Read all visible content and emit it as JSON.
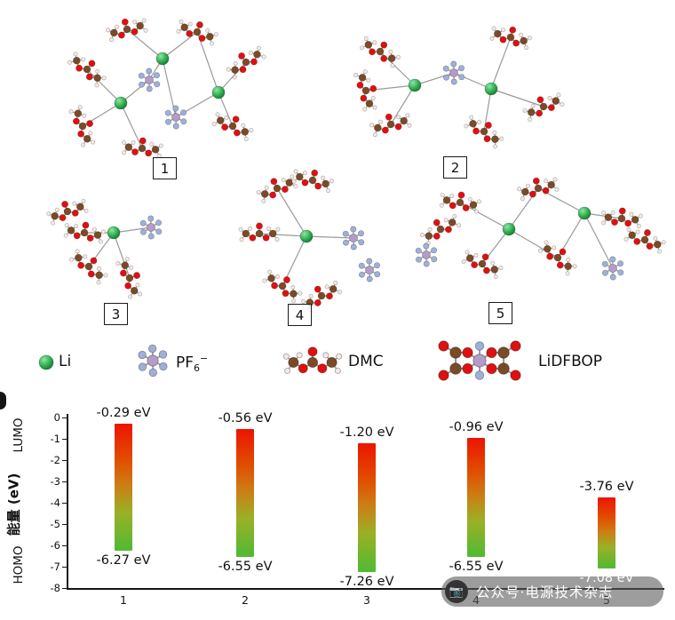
{
  "figure": {
    "structure_labels": [
      "1",
      "2",
      "3",
      "4",
      "5"
    ],
    "legend": {
      "li": "Li",
      "pf6_base": "PF",
      "pf6_sub": "6",
      "pf6_sup": "−",
      "dmc": "DMC",
      "lidfbop": "LiDFBOP"
    }
  },
  "chart_data": {
    "type": "bar",
    "categories": [
      "1",
      "2",
      "3",
      "4",
      "5"
    ],
    "series": [
      {
        "name": "LUMO",
        "values": [
          -0.29,
          -0.56,
          -1.2,
          -0.96,
          -3.76
        ]
      },
      {
        "name": "HOMO",
        "values": [
          -6.27,
          -6.55,
          -7.26,
          -6.55,
          -7.08
        ]
      }
    ],
    "bar_labels_top": [
      "-0.29 eV",
      "-0.56 eV",
      "-1.20 eV",
      "-0.96 eV",
      "-3.76 eV"
    ],
    "bar_labels_bottom": [
      "-6.27 eV",
      "-6.55 eV",
      "-7.26 eV",
      "-6.55 eV",
      "-7.08 eV"
    ],
    "ylabel_top": "LUMO",
    "ylabel_middle": "能量 (eV)",
    "ylabel_bottom": "HOMO",
    "ylim": [
      -8,
      0
    ],
    "yticks": [
      0,
      -1,
      -2,
      -3,
      -4,
      -5,
      -6,
      -7,
      -8
    ],
    "grid": false,
    "legend_position": "none",
    "bar_gradient_top": "#ec1400",
    "bar_gradient_bottom": "#4fba33"
  },
  "watermark": {
    "icon": "camera-icon",
    "text": "公众号·电源技术杂志"
  },
  "atom_colors": {
    "li": "#2fae4e",
    "o": "#e01010",
    "c": "#7b4a26",
    "h": "#f5e9e6",
    "p": "#b39cc8",
    "f": "#9fb0d8"
  }
}
